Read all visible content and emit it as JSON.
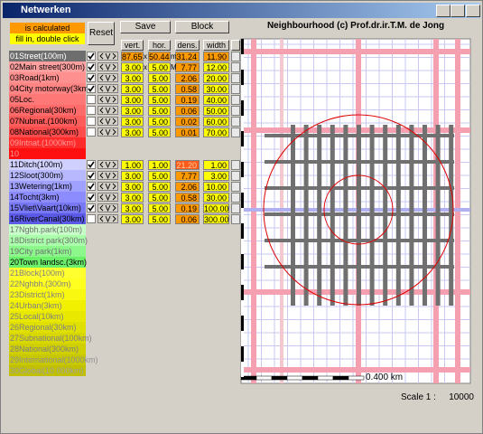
{
  "window": {
    "title": "Netwerken"
  },
  "legend": {
    "calculated": "is calculated",
    "calculated_color": "#ff9900",
    "fill_in": "fill in, double click",
    "fill_in_color": "#ffff00"
  },
  "buttons": {
    "reset": "Reset",
    "save": "Save",
    "block": "Block"
  },
  "columns": [
    "vert.",
    "hor.",
    "dens.",
    "width"
  ],
  "rows": [
    {
      "name": "01Street(100m)",
      "color": "#6e6e6e",
      "text_color": "#ffffff",
      "checked": true,
      "values": [
        "87.65",
        "50.44",
        "31.24",
        "11.90"
      ],
      "separators": [
        "x",
        "m"
      ],
      "cell_colors": [
        "#ff9900",
        "#ff9900",
        "#ff9900",
        "#ff9900"
      ]
    },
    {
      "name": "02Main street(300m)",
      "color": "#ffa0a0",
      "checked": true,
      "values": [
        "3.00",
        "5.00",
        "7.77",
        "12.00"
      ],
      "separators": [
        "x",
        "M"
      ],
      "cell_colors": [
        "#ffff00",
        "#ffff00",
        "#ff9900",
        "#ffff00"
      ]
    },
    {
      "name": "03Road(1km)",
      "color": "#ff9090",
      "checked": true,
      "values": [
        "3.00",
        "5.00",
        "2.06",
        "20.00"
      ],
      "cell_colors": [
        "#ffff00",
        "#ffff00",
        "#ff9900",
        "#ffff00"
      ]
    },
    {
      "name": "04City motorway(3km)",
      "color": "#ff8484",
      "checked": true,
      "values": [
        "3.00",
        "5.00",
        "0.58",
        "30.00"
      ],
      "cell_colors": [
        "#ffff00",
        "#ffff00",
        "#ff9900",
        "#ffff00"
      ]
    },
    {
      "name": "05Loc.",
      "color": "#ff7878",
      "checked": false,
      "values": [
        "3.00",
        "5.00",
        "0.19",
        "40.00"
      ],
      "cell_colors": [
        "#ffff00",
        "#ffff00",
        "#ff9900",
        "#ffff00"
      ]
    },
    {
      "name": "06Regional(30km)",
      "color": "#ff6a6a",
      "checked": false,
      "values": [
        "3.00",
        "5.00",
        "0.06",
        "50.00"
      ],
      "cell_colors": [
        "#ffff00",
        "#ffff00",
        "#ff9900",
        "#ffff00"
      ]
    },
    {
      "name": "07Nubnat.(100km)",
      "color": "#ff5c5c",
      "checked": false,
      "values": [
        "3.00",
        "5.00",
        "0.02",
        "60.00"
      ],
      "cell_colors": [
        "#ffff00",
        "#ffff00",
        "#ff9900",
        "#ffff00"
      ]
    },
    {
      "name": "08National(300km)",
      "color": "#ff4c4c",
      "checked": false,
      "values": [
        "3.00",
        "5.00",
        "0.01",
        "70.00"
      ],
      "cell_colors": [
        "#ffff00",
        "#ffff00",
        "#ff9900",
        "#ffff00"
      ]
    },
    {
      "name": "09Intnat.(1000km)",
      "color": "#ff2a2a",
      "text_color": "#ff9a9a"
    },
    {
      "name": "10",
      "color": "#ff1010",
      "text_color": "#ff9a9a"
    },
    {
      "name": "11Ditch(100m)",
      "color": "#d0d0ff",
      "checked": true,
      "values": [
        "1.00",
        "1.00",
        "21.20",
        "1.00"
      ],
      "cell_colors": [
        "#ffff00",
        "#ffff00",
        "#ff5a1a",
        "#ffff00"
      ]
    },
    {
      "name": "12Sloot(300m)",
      "color": "#b8b8ff",
      "checked": true,
      "values": [
        "3.00",
        "5.00",
        "7.77",
        "3.00"
      ],
      "cell_colors": [
        "#ffff00",
        "#ffff00",
        "#ff9900",
        "#ffff00"
      ]
    },
    {
      "name": "13Wetering(1km)",
      "color": "#a0a0ff",
      "checked": true,
      "values": [
        "3.00",
        "5.00",
        "2.06",
        "10.00"
      ],
      "cell_colors": [
        "#ffff00",
        "#ffff00",
        "#ff9900",
        "#ffff00"
      ]
    },
    {
      "name": "14Tocht(3km)",
      "color": "#8c8cff",
      "checked": true,
      "values": [
        "3.00",
        "5.00",
        "0.58",
        "30.00"
      ],
      "cell_colors": [
        "#ffff00",
        "#ffff00",
        "#ff9900",
        "#ffff00"
      ]
    },
    {
      "name": "15Vliet\\Vaart(10km)",
      "color": "#7878f4",
      "checked": true,
      "values": [
        "3.00",
        "5.00",
        "0.19",
        "100.00"
      ],
      "cell_colors": [
        "#ffff00",
        "#ffff00",
        "#ff9900",
        "#ffff00"
      ]
    },
    {
      "name": "16RiverCanal(30km)",
      "color": "#5a5ae6",
      "checked": false,
      "values": [
        "3.00",
        "5.00",
        "0.06",
        "300.00"
      ],
      "cell_colors": [
        "#ffff00",
        "#ffff00",
        "#ff9900",
        "#ffff00"
      ]
    },
    {
      "name": "17Ngbh.park(100m)",
      "color": "#c8ffc8",
      "text_color": "#707070"
    },
    {
      "name": "18District park(300m)",
      "color": "#aaffaa",
      "text_color": "#707070"
    },
    {
      "name": "19City park(1km)",
      "color": "#8cf88c",
      "text_color": "#707070"
    },
    {
      "name": "20Town landsc.(3km)",
      "color": "#6cf06c"
    },
    {
      "name": "21Block(100m)",
      "color": "#ffff30",
      "text_color": "#808080"
    },
    {
      "name": "22Nghbh.(300m)",
      "color": "#ffff20",
      "text_color": "#808080"
    },
    {
      "name": "23District(1km)",
      "color": "#f8f810",
      "text_color": "#808080"
    },
    {
      "name": "24Urban(3km)",
      "color": "#f0f000",
      "text_color": "#808080"
    },
    {
      "name": "25Local(10km)",
      "color": "#e8e800",
      "text_color": "#808080"
    },
    {
      "name": "26Regional(30km)",
      "color": "#e0e000",
      "text_color": "#808080"
    },
    {
      "name": "27Subnational(100km)",
      "color": "#d8d800",
      "text_color": "#808080"
    },
    {
      "name": "28National(300km)",
      "color": "#d0d000",
      "text_color": "#808080"
    },
    {
      "name": "29International(1000km)",
      "color": "#c8c800",
      "text_color": "#909090"
    },
    {
      "name": "30Global(10 000km)",
      "color": "#c0c000",
      "text_color": "#a0a0a0"
    }
  ],
  "map": {
    "title": "Neighbourhood (c) Prof.dr.ir.T.M. de Jong",
    "scale_bar": "0.400 km"
  },
  "scale": {
    "label": "Scale 1 :",
    "value": "10000"
  }
}
